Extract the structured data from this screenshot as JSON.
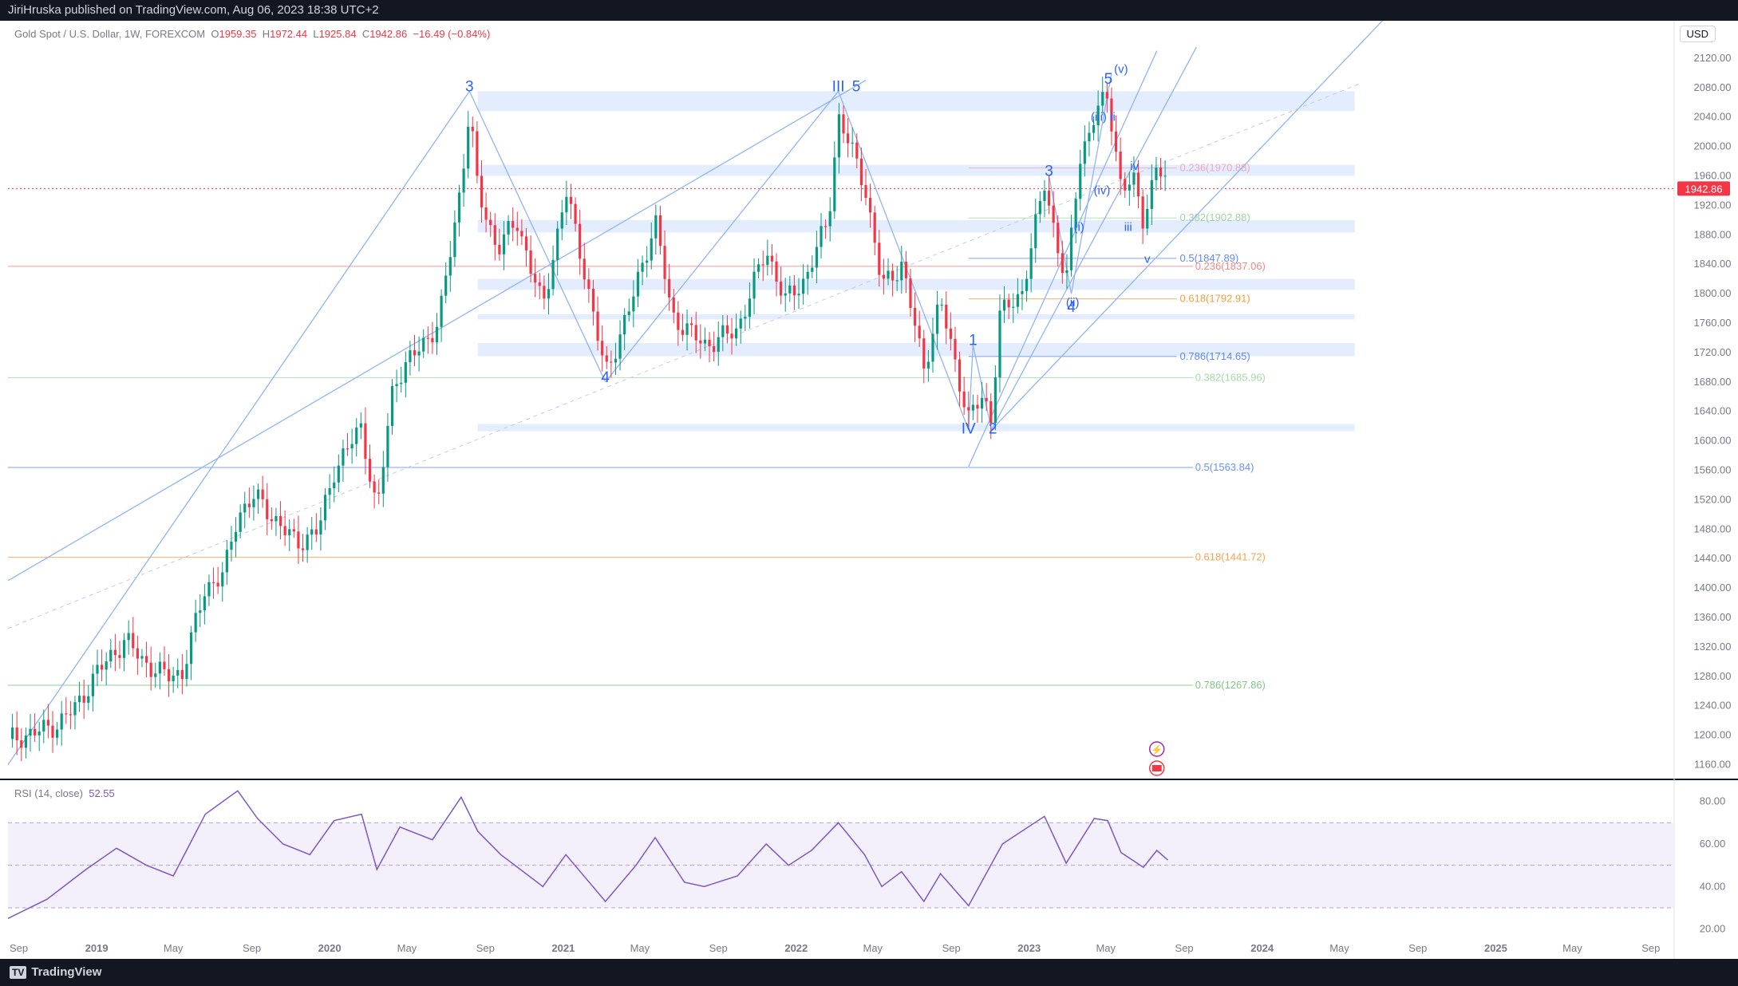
{
  "header": {
    "publish_text": "JiriHruska published on TradingView.com, Aug 06, 2023 18:38 UTC+2"
  },
  "legend": {
    "symbol": "Gold Spot / U.S. Dollar, 1W, FOREXCOM",
    "open_label": "O",
    "open": "1959.35",
    "high_label": "H",
    "high": "1972.44",
    "low_label": "L",
    "low": "1925.84",
    "close_label": "C",
    "close": "1942.86",
    "change": "−16.49 (−0.84%)"
  },
  "currency_button": "USD",
  "last_price_tag": "1942.86",
  "rsi_legend": {
    "name": "RSI (14, close)",
    "value": "52.55"
  },
  "footer": {
    "brand": "TradingView",
    "brand_mark": "TV"
  },
  "colors": {
    "up": "#089981",
    "down": "#f23645",
    "accent": "#2962ff",
    "wave_label": "#2962ff",
    "rsi": "#7e57c2",
    "zone": "#e3edfd",
    "fib_orange": "#f57c00",
    "fib_green": "#4caf50",
    "fib_blue": "#2962ff"
  },
  "chart_data": [
    {
      "type": "candlestick",
      "title": "Gold Spot / U.S. Dollar, 1W, FOREXCOM",
      "y_axis_side": "right",
      "ylim": [
        1140,
        2160
      ],
      "y_ticks": [
        1160,
        1200,
        1240,
        1280,
        1320,
        1360,
        1400,
        1440,
        1480,
        1520,
        1560,
        1600,
        1640,
        1680,
        1720,
        1760,
        1800,
        1840,
        1880,
        1920,
        1960,
        2000,
        2040,
        2080,
        2120
      ],
      "x_ticks": [
        {
          "label": "Sep",
          "date": "2018-09"
        },
        {
          "label": "2019",
          "date": "2019-01"
        },
        {
          "label": "May",
          "date": "2019-05"
        },
        {
          "label": "Sep",
          "date": "2019-09"
        },
        {
          "label": "2020",
          "date": "2020-01"
        },
        {
          "label": "May",
          "date": "2020-05"
        },
        {
          "label": "Sep",
          "date": "2020-09"
        },
        {
          "label": "2021",
          "date": "2021-01"
        },
        {
          "label": "May",
          "date": "2021-05"
        },
        {
          "label": "Sep",
          "date": "2021-09"
        },
        {
          "label": "2022",
          "date": "2022-01"
        },
        {
          "label": "May",
          "date": "2022-05"
        },
        {
          "label": "Sep",
          "date": "2022-09"
        },
        {
          "label": "2023",
          "date": "2023-01"
        },
        {
          "label": "May",
          "date": "2023-05"
        },
        {
          "label": "Sep",
          "date": "2023-09"
        },
        {
          "label": "2024",
          "date": "2024-01"
        },
        {
          "label": "May",
          "date": "2024-05"
        },
        {
          "label": "Sep",
          "date": "2024-09"
        },
        {
          "label": "2025",
          "date": "2025-01"
        },
        {
          "label": "May",
          "date": "2025-05"
        },
        {
          "label": "Sep",
          "date": "2025-09"
        }
      ],
      "price_path": [
        [
          "2018-08-15",
          1195
        ],
        [
          "2018-09-15",
          1200
        ],
        [
          "2018-11-01",
          1215
        ],
        [
          "2018-12-01",
          1240
        ],
        [
          "2019-01-01",
          1285
        ],
        [
          "2019-02-15",
          1330
        ],
        [
          "2019-03-15",
          1300
        ],
        [
          "2019-04-20",
          1280
        ],
        [
          "2019-05-15",
          1285
        ],
        [
          "2019-06-20",
          1400
        ],
        [
          "2019-07-20",
          1420
        ],
        [
          "2019-08-10",
          1500
        ],
        [
          "2019-09-05",
          1525
        ],
        [
          "2019-10-01",
          1500
        ],
        [
          "2019-11-10",
          1460
        ],
        [
          "2019-12-15",
          1480
        ],
        [
          "2020-01-08",
          1560
        ],
        [
          "2020-02-20",
          1620
        ],
        [
          "2020-03-15",
          1500
        ],
        [
          "2020-04-10",
          1680
        ],
        [
          "2020-05-15",
          1720
        ],
        [
          "2020-06-20",
          1760
        ],
        [
          "2020-07-25",
          1950
        ],
        [
          "2020-08-07",
          2050
        ],
        [
          "2020-08-20",
          1940
        ],
        [
          "2020-09-20",
          1860
        ],
        [
          "2020-10-20",
          1900
        ],
        [
          "2020-11-30",
          1780
        ],
        [
          "2021-01-05",
          1940
        ],
        [
          "2021-02-01",
          1840
        ],
        [
          "2021-03-08",
          1690
        ],
        [
          "2021-04-15",
          1780
        ],
        [
          "2021-05-25",
          1900
        ],
        [
          "2021-06-20",
          1770
        ],
        [
          "2021-08-10",
          1730
        ],
        [
          "2021-09-30",
          1750
        ],
        [
          "2021-11-15",
          1860
        ],
        [
          "2021-12-15",
          1790
        ],
        [
          "2022-01-15",
          1820
        ],
        [
          "2022-02-20",
          1900
        ],
        [
          "2022-03-08",
          2040
        ],
        [
          "2022-04-18",
          1950
        ],
        [
          "2022-05-15",
          1810
        ],
        [
          "2022-06-15",
          1840
        ],
        [
          "2022-07-20",
          1700
        ],
        [
          "2022-08-15",
          1790
        ],
        [
          "2022-09-28",
          1630
        ],
        [
          "2022-10-20",
          1660
        ],
        [
          "2022-11-03",
          1630
        ],
        [
          "2022-11-15",
          1770
        ],
        [
          "2022-12-20",
          1800
        ],
        [
          "2023-01-25",
          1950
        ],
        [
          "2023-02-28",
          1810
        ],
        [
          "2023-03-20",
          1980
        ],
        [
          "2023-04-13",
          2040
        ],
        [
          "2023-05-04",
          2070
        ],
        [
          "2023-05-25",
          1945
        ],
        [
          "2023-06-15",
          1950
        ],
        [
          "2023-06-29",
          1900
        ],
        [
          "2023-07-20",
          1975
        ],
        [
          "2023-08-06",
          1942.86
        ]
      ],
      "last_price": 1942.86,
      "elliott_wave_labels": [
        {
          "text": "3",
          "date": "2020-08-07",
          "price": 2075,
          "size": "large"
        },
        {
          "text": "4",
          "date": "2021-03-08",
          "price": 1680,
          "size": "large"
        },
        {
          "text": "III",
          "date": "2022-03-08",
          "price": 2075,
          "size": "large"
        },
        {
          "text": "5",
          "date": "2022-04-05",
          "price": 2075,
          "size": "large"
        },
        {
          "text": "IV",
          "date": "2022-09-28",
          "price": 1610,
          "size": "large"
        },
        {
          "text": "1",
          "date": "2022-10-05",
          "price": 1730,
          "size": "large"
        },
        {
          "text": "2",
          "date": "2022-11-05",
          "price": 1610,
          "size": "large"
        },
        {
          "text": "3",
          "date": "2023-02-01",
          "price": 1960,
          "size": "large"
        },
        {
          "text": "4",
          "date": "2023-03-08",
          "price": 1775,
          "size": "large"
        },
        {
          "text": "5",
          "date": "2023-05-05",
          "price": 2085,
          "size": "large"
        },
        {
          "text": "(v)",
          "date": "2023-05-25",
          "price": 2100,
          "size": "small"
        },
        {
          "text": "(iii)",
          "date": "2023-04-20",
          "price": 2035,
          "size": "small"
        },
        {
          "text": "ii",
          "date": "2023-05-12",
          "price": 2035,
          "size": "small"
        },
        {
          "text": "(iv)",
          "date": "2023-04-25",
          "price": 1935,
          "size": "small"
        },
        {
          "text": "(i)",
          "date": "2023-03-20",
          "price": 1885,
          "size": "small"
        },
        {
          "text": "(ii)",
          "date": "2023-03-10",
          "price": 1783,
          "size": "small"
        },
        {
          "text": "iv",
          "date": "2023-06-15",
          "price": 1968,
          "size": "small"
        },
        {
          "text": "iii",
          "date": "2023-06-05",
          "price": 1885,
          "size": "small"
        },
        {
          "text": "v",
          "date": "2023-07-05",
          "price": 1842,
          "size": "small"
        }
      ],
      "fibonacci_levels_short": [
        {
          "label": "0.236(1970.88)",
          "price": 1970.88,
          "color": "#f48fb1"
        },
        {
          "label": "0.382(1902.88)",
          "price": 1902.88,
          "color": "#81c784"
        },
        {
          "label": "0.5(1847.89)",
          "price": 1847.89,
          "color": "#2962ff"
        },
        {
          "label": "0.618(1792.91)",
          "price": 1792.91,
          "color": "#f57c00"
        },
        {
          "label": "0.786(1714.65)",
          "price": 1714.65,
          "color": "#2962ff"
        }
      ],
      "fibonacci_levels_long": [
        {
          "label": "0.236(1837.06)",
          "price": 1837.06,
          "color": "#ef5350"
        },
        {
          "label": "0.382(1685.96)",
          "price": 1685.96,
          "color": "#81c784"
        },
        {
          "label": "0.5(1563.84)",
          "price": 1563.84,
          "color": "#2962ff"
        },
        {
          "label": "0.618(1441.72)",
          "price": 1441.72,
          "color": "#f57c00"
        },
        {
          "label": "0.786(1267.86)",
          "price": 1267.86,
          "color": "#4caf50"
        }
      ],
      "zones": [
        {
          "from": 2048,
          "to": 2075
        },
        {
          "from": 1960,
          "to": 1975
        },
        {
          "from": 1883,
          "to": 1900
        },
        {
          "from": 1805,
          "to": 1820
        },
        {
          "from": 1765,
          "to": 1772
        },
        {
          "from": 1715,
          "to": 1733
        },
        {
          "from": 1613,
          "to": 1623
        }
      ]
    },
    {
      "type": "line",
      "title": "RSI (14, close)",
      "ylim": [
        15,
        90
      ],
      "y_ticks": [
        20.0,
        40.0,
        60.0,
        80.0
      ],
      "bands": [
        30,
        50,
        70
      ],
      "last_value": 52.55,
      "series": [
        {
          "name": "RSI (14, close)",
          "points": [
            [
              "2018-08-15",
              25
            ],
            [
              "2018-10-15",
              34
            ],
            [
              "2018-12-15",
              48
            ],
            [
              "2019-02-01",
              58
            ],
            [
              "2019-03-20",
              50
            ],
            [
              "2019-05-01",
              45
            ],
            [
              "2019-06-20",
              74
            ],
            [
              "2019-08-10",
              85
            ],
            [
              "2019-09-10",
              72
            ],
            [
              "2019-10-20",
              60
            ],
            [
              "2019-12-01",
              55
            ],
            [
              "2020-01-08",
              71
            ],
            [
              "2020-02-20",
              74
            ],
            [
              "2020-03-15",
              48
            ],
            [
              "2020-04-20",
              68
            ],
            [
              "2020-06-10",
              62
            ],
            [
              "2020-07-25",
              82
            ],
            [
              "2020-08-20",
              66
            ],
            [
              "2020-09-25",
              55
            ],
            [
              "2020-11-30",
              40
            ],
            [
              "2021-01-05",
              55
            ],
            [
              "2021-03-08",
              33
            ],
            [
              "2021-04-25",
              50
            ],
            [
              "2021-05-25",
              63
            ],
            [
              "2021-07-10",
              42
            ],
            [
              "2021-08-10",
              40
            ],
            [
              "2021-10-01",
              45
            ],
            [
              "2021-11-15",
              60
            ],
            [
              "2021-12-20",
              50
            ],
            [
              "2022-01-25",
              57
            ],
            [
              "2022-03-08",
              70
            ],
            [
              "2022-04-18",
              55
            ],
            [
              "2022-05-15",
              40
            ],
            [
              "2022-06-15",
              47
            ],
            [
              "2022-07-20",
              33
            ],
            [
              "2022-08-15",
              46
            ],
            [
              "2022-09-28",
              31
            ],
            [
              "2022-11-20",
              60
            ],
            [
              "2023-01-25",
              73
            ],
            [
              "2023-02-28",
              51
            ],
            [
              "2023-04-13",
              72
            ],
            [
              "2023-05-04",
              71
            ],
            [
              "2023-05-25",
              56
            ],
            [
              "2023-06-29",
              49
            ],
            [
              "2023-07-20",
              57
            ],
            [
              "2023-08-06",
              52.55
            ]
          ]
        }
      ],
      "x_ticks": [
        "Sep",
        "2019",
        "May",
        "Sep",
        "2020",
        "May",
        "Sep",
        "2021",
        "May",
        "Sep",
        "2022",
        "May",
        "Sep",
        "2023",
        "May",
        "Sep",
        "2024",
        "May",
        "Sep",
        "2025",
        "May",
        "Sep"
      ]
    }
  ]
}
